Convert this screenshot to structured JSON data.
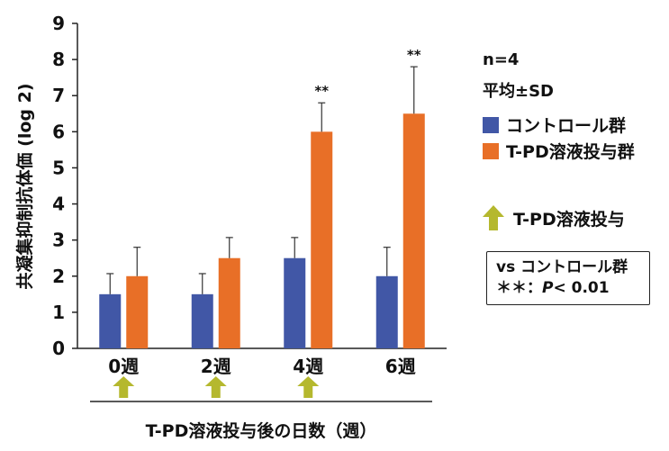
{
  "chart_data": {
    "type": "bar",
    "ylabel": "共凝集抑制抗体価 (log 2)",
    "xlabel": "T-PD溶液投与後の日数（週）",
    "ylim": [
      0,
      9
    ],
    "yticks": [
      0,
      1,
      2,
      3,
      4,
      5,
      6,
      7,
      8,
      9
    ],
    "categories": [
      "0週",
      "2週",
      "4週",
      "6週"
    ],
    "series": [
      {
        "name": "コントロール群",
        "values": [
          1.5,
          1.5,
          2.5,
          2.0
        ],
        "errors": [
          0.57,
          0.57,
          0.57,
          0.8
        ],
        "color": "#4157a6"
      },
      {
        "name": "T-PD溶液投与群",
        "values": [
          2.0,
          2.5,
          6.0,
          6.5
        ],
        "errors": [
          0.8,
          0.57,
          0.8,
          1.3
        ],
        "color": "#e86f27"
      }
    ],
    "significance": [
      "",
      "",
      "**",
      "**"
    ],
    "dosing_weeks": [
      "0週",
      "2週",
      "4週"
    ],
    "arrow_color": "#b5b82e"
  },
  "notes": {
    "n": "n=4",
    "stat": "平均±SD",
    "arrow_legend": "T-PD溶液投与",
    "vs": "vs コントロール群",
    "p_prefix": "＊＊：",
    "p_italic": "P",
    "p_suffix": "< 0.01"
  }
}
